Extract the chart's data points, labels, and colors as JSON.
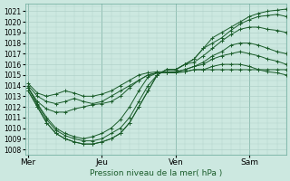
{
  "background_color": "#cce8e0",
  "grid_color": "#aaccc4",
  "line_color": "#1a5c2a",
  "marker_color": "#1a5c2a",
  "ylim": [
    1007.5,
    1021.7
  ],
  "ytick_min": 1008,
  "ytick_max": 1021,
  "xlabel": "Pression niveau de la mer( hPa )",
  "xtick_labels": [
    "Mer",
    "Jeu",
    "Ven",
    "Sam"
  ],
  "xtick_positions": [
    0,
    48,
    96,
    144
  ],
  "xlim": [
    -2,
    168
  ],
  "curves": [
    {
      "x": [
        0,
        6,
        12,
        18,
        24,
        30,
        36,
        42,
        48,
        54,
        60,
        66,
        72,
        78,
        84,
        90,
        96,
        102,
        108,
        114,
        120,
        126,
        132,
        138,
        144,
        150,
        156,
        162,
        168
      ],
      "y": [
        1013.5,
        1012.0,
        1010.5,
        1009.5,
        1009.0,
        1008.7,
        1008.5,
        1008.5,
        1008.7,
        1009.0,
        1009.5,
        1010.5,
        1012.0,
        1013.5,
        1015.0,
        1015.5,
        1015.5,
        1016.0,
        1016.5,
        1017.5,
        1018.5,
        1019.0,
        1019.5,
        1020.0,
        1020.5,
        1020.8,
        1021.0,
        1021.1,
        1021.2
      ]
    },
    {
      "x": [
        0,
        6,
        12,
        18,
        24,
        30,
        36,
        42,
        48,
        54,
        60,
        66,
        72,
        78,
        84,
        90,
        96,
        102,
        108,
        114,
        120,
        126,
        132,
        138,
        144,
        150,
        156,
        162,
        168
      ],
      "y": [
        1013.5,
        1012.0,
        1010.5,
        1009.5,
        1009.0,
        1008.7,
        1008.5,
        1008.5,
        1008.7,
        1009.0,
        1009.5,
        1010.5,
        1012.0,
        1013.5,
        1015.0,
        1015.5,
        1015.5,
        1016.0,
        1016.5,
        1017.5,
        1018.0,
        1018.5,
        1019.2,
        1019.8,
        1020.2,
        1020.5,
        1020.6,
        1020.7,
        1020.5
      ]
    },
    {
      "x": [
        0,
        6,
        12,
        18,
        24,
        30,
        36,
        42,
        48,
        54,
        60,
        66,
        72,
        78,
        84,
        90,
        96,
        102,
        108,
        114,
        120,
        126,
        132,
        138,
        144,
        150,
        156,
        162,
        168
      ],
      "y": [
        1013.8,
        1012.2,
        1010.8,
        1009.8,
        1009.3,
        1009.0,
        1008.8,
        1008.8,
        1009.0,
        1009.5,
        1010.0,
        1011.0,
        1012.5,
        1014.0,
        1015.0,
        1015.5,
        1015.5,
        1016.0,
        1016.2,
        1016.8,
        1017.5,
        1018.2,
        1018.8,
        1019.3,
        1019.5,
        1019.5,
        1019.3,
        1019.2,
        1019.0
      ]
    },
    {
      "x": [
        0,
        6,
        12,
        18,
        24,
        30,
        36,
        42,
        48,
        54,
        60,
        66,
        72,
        78,
        84,
        90,
        96,
        102,
        108,
        114,
        120,
        126,
        132,
        138,
        144,
        150,
        156,
        162,
        168
      ],
      "y": [
        1013.8,
        1012.3,
        1011.0,
        1010.0,
        1009.5,
        1009.2,
        1009.0,
        1009.2,
        1009.5,
        1010.0,
        1010.8,
        1012.0,
        1013.5,
        1014.8,
        1015.2,
        1015.2,
        1015.3,
        1015.5,
        1015.8,
        1016.2,
        1016.8,
        1017.2,
        1017.8,
        1018.0,
        1018.0,
        1017.8,
        1017.5,
        1017.2,
        1017.0
      ]
    },
    {
      "x": [
        0,
        6,
        12,
        18,
        24,
        30,
        36,
        42,
        48,
        54,
        60,
        66,
        72,
        78,
        84,
        90,
        96,
        102,
        108,
        114,
        120,
        126,
        132,
        138,
        144,
        150,
        156,
        162,
        168
      ],
      "y": [
        1013.8,
        1012.5,
        1011.8,
        1011.5,
        1011.5,
        1011.8,
        1012.0,
        1012.2,
        1012.3,
        1012.5,
        1013.0,
        1013.8,
        1014.5,
        1015.0,
        1015.2,
        1015.2,
        1015.3,
        1015.5,
        1015.8,
        1016.0,
        1016.5,
        1016.8,
        1017.0,
        1017.2,
        1017.0,
        1016.8,
        1016.5,
        1016.3,
        1016.0
      ]
    },
    {
      "x": [
        0,
        6,
        12,
        18,
        24,
        30,
        36,
        42,
        48,
        54,
        60,
        66,
        72,
        78,
        84,
        90,
        96,
        102,
        108,
        114,
        120,
        126,
        132,
        138,
        144,
        150,
        156,
        162,
        168
      ],
      "y": [
        1014.0,
        1013.0,
        1012.5,
        1012.3,
        1012.5,
        1012.8,
        1012.5,
        1012.3,
        1012.5,
        1013.0,
        1013.5,
        1014.0,
        1014.5,
        1015.0,
        1015.2,
        1015.2,
        1015.2,
        1015.3,
        1015.5,
        1015.5,
        1015.8,
        1016.0,
        1016.0,
        1016.0,
        1015.8,
        1015.5,
        1015.3,
        1015.2,
        1015.0
      ]
    },
    {
      "x": [
        0,
        6,
        12,
        18,
        24,
        30,
        36,
        42,
        48,
        54,
        60,
        66,
        72,
        78,
        84,
        90,
        96,
        102,
        108,
        114,
        120,
        126,
        132,
        138,
        144,
        150,
        156,
        162,
        168
      ],
      "y": [
        1014.2,
        1013.3,
        1013.0,
        1013.2,
        1013.5,
        1013.3,
        1013.0,
        1013.0,
        1013.2,
        1013.5,
        1014.0,
        1014.5,
        1015.0,
        1015.2,
        1015.3,
        1015.3,
        1015.3,
        1015.3,
        1015.5,
        1015.5,
        1015.5,
        1015.5,
        1015.5,
        1015.5,
        1015.5,
        1015.5,
        1015.5,
        1015.5,
        1015.5
      ]
    }
  ]
}
